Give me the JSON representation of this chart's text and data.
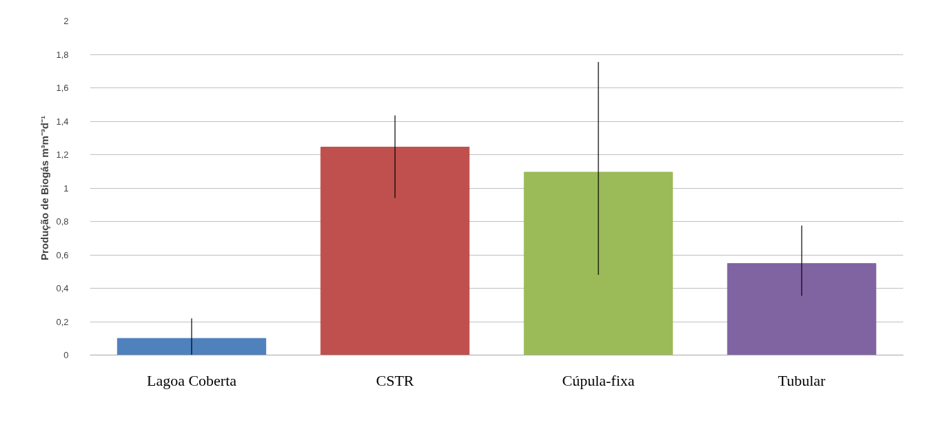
{
  "chart_data": {
    "type": "bar",
    "ylabel": "Produção de Biogás m³m⁻³d⁻¹",
    "categories": [
      "Lagoa Coberta",
      "CSTR",
      "Cúpula-fixa",
      "Tubular"
    ],
    "values": [
      0.1,
      1.245,
      1.095,
      0.548
    ],
    "colors": [
      "#4f81bd",
      "#c0504d",
      "#9bbb59",
      "#8064a2"
    ],
    "errors": [
      [
        0,
        0.22
      ],
      [
        0.94,
        1.435
      ],
      [
        0.48,
        1.755
      ],
      [
        0.355,
        0.775
      ]
    ],
    "ylim": [
      0,
      2
    ],
    "yticks": [
      0,
      {
        "value": 0.2,
        "label": "0,2"
      },
      {
        "value": 0.4,
        "label": "0,4"
      },
      {
        "value": 0.6,
        "label": "0,6"
      },
      {
        "value": 0.8,
        "label": "0,8"
      },
      1,
      {
        "value": 1.2,
        "label": "1,2"
      },
      {
        "value": 1.4,
        "label": "1,4"
      },
      {
        "value": 1.6,
        "label": "1,6"
      },
      {
        "value": 1.8,
        "label": "1,8"
      },
      2
    ],
    "grid": "y"
  }
}
